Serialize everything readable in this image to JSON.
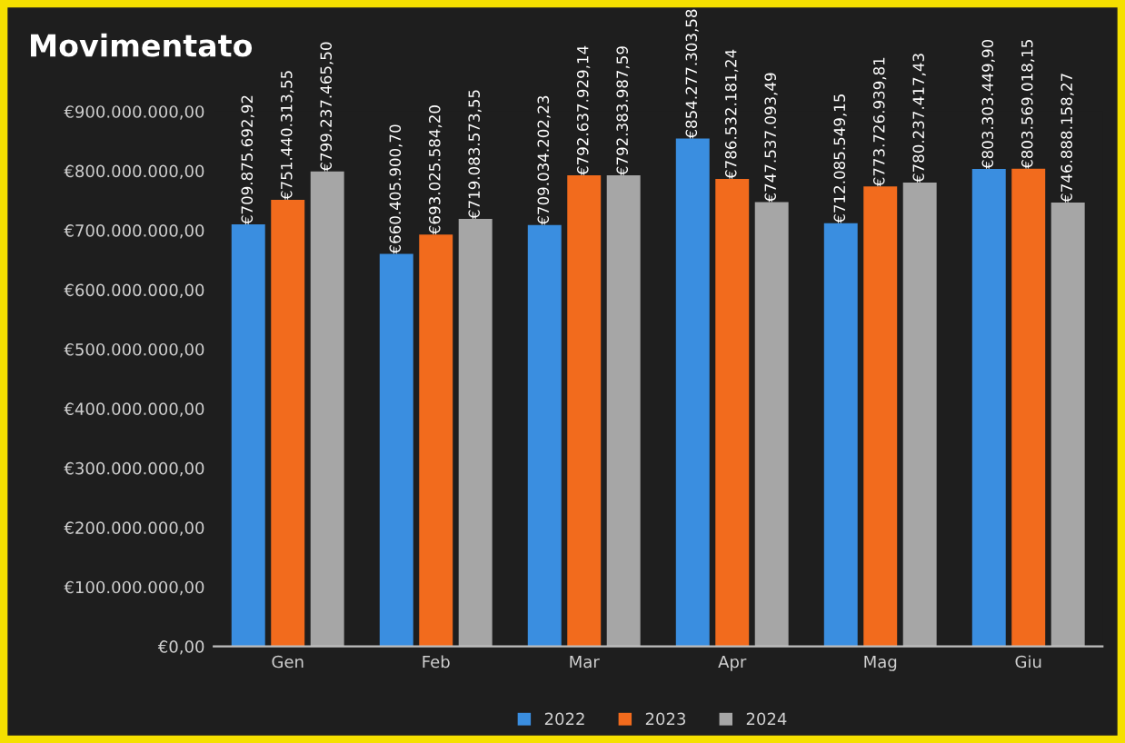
{
  "chart_data": {
    "type": "bar",
    "title": "Movimentato",
    "categories": [
      "Gen",
      "Feb",
      "Mar",
      "Apr",
      "Mag",
      "Giu"
    ],
    "series": [
      {
        "name": "2022",
        "color": "#3a8ee0",
        "values": [
          709875692.92,
          660405900.7,
          709034202.23,
          854277303.58,
          712085549.15,
          803303449.9
        ],
        "value_labels": [
          "€709.875.692,92",
          "€660.405.900,70",
          "€709.034.202,23",
          "€854.277.303,58",
          "€712.085.549,15",
          "€803.303.449,90"
        ]
      },
      {
        "name": "2023",
        "color": "#f26b1d",
        "values": [
          751440313.55,
          693025584.2,
          792637929.14,
          786532181.24,
          773726939.81,
          803569018.15
        ],
        "value_labels": [
          "€751.440.313,55",
          "€693.025.584,20",
          "€792.637.929,14",
          "€786.532.181,24",
          "€773.726.939,81",
          "€803.569.018,15"
        ]
      },
      {
        "name": "2024",
        "color": "#a6a6a6",
        "values": [
          799237465.5,
          719083573.55,
          792383987.59,
          747537093.49,
          780237417.43,
          746888158.27
        ],
        "value_labels": [
          "€799.237.465,50",
          "€719.083.573,55",
          "€792.383.987,59",
          "€747.537.093,49",
          "€780.237.417,43",
          "€746.888.158,27"
        ]
      }
    ],
    "ylim": [
      0,
      900000000
    ],
    "yticks": [
      {
        "value": 0,
        "label": "€0,00"
      },
      {
        "value": 100000000,
        "label": "€100.000.000,00"
      },
      {
        "value": 200000000,
        "label": "€200.000.000,00"
      },
      {
        "value": 300000000,
        "label": "€300.000.000,00"
      },
      {
        "value": 400000000,
        "label": "€400.000.000,00"
      },
      {
        "value": 500000000,
        "label": "€500.000.000,00"
      },
      {
        "value": 600000000,
        "label": "€600.000.000,00"
      },
      {
        "value": 700000000,
        "label": "€700.000.000,00"
      },
      {
        "value": 800000000,
        "label": "€800.000.000,00"
      },
      {
        "value": 900000000,
        "label": "€900.000.000,00"
      }
    ],
    "grid": false,
    "legend": "bottom"
  }
}
